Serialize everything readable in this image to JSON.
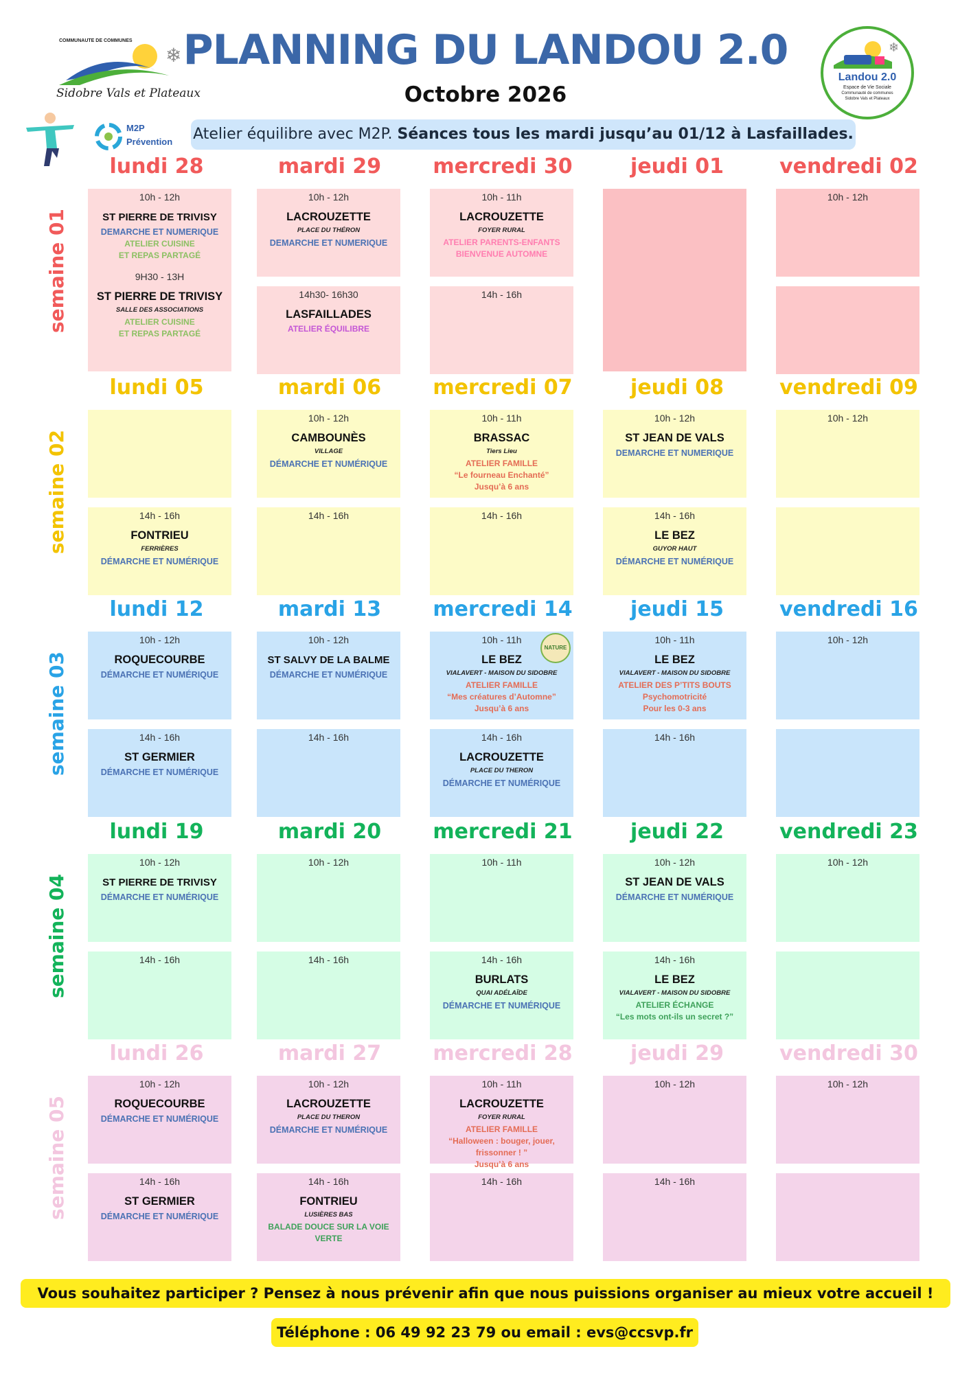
{
  "header": {
    "title": "PLANNING DU LANDOU 2.0",
    "subtitle": "Octobre 2026",
    "left_logo": {
      "top_text": "COMMUNAUTE DE COMMUNES",
      "bottom_text": "Sidobre Vals et Plateaux"
    },
    "right_logo": {
      "title": "Landou 2.0",
      "line1": "Espace de Vie Sociale",
      "line2": "Communauté de communes",
      "line3": "Sidobre Vals et Plateaux"
    },
    "m2p_logo": {
      "line1": "M2P",
      "line2": "Prévention"
    }
  },
  "banner": {
    "text": "Atelier équilibre avec M2P. ",
    "bold": "Séances tous les mardi jusqu’au 01/12 à Lasfaillades."
  },
  "colors": {
    "title": "#3b67a8",
    "s1": "#f15a5a",
    "s2": "#f3c300",
    "s3": "#29a3e6",
    "s4": "#13b35a",
    "s5": "#f3c6df"
  },
  "weeks": [
    {
      "label": "semaine 01",
      "color": "#f15a5a",
      "days": [
        "lundi 28",
        "mardi 29",
        "mercredi 30",
        "jeudi 01",
        "vendredi 02"
      ]
    },
    {
      "label": "semaine 02",
      "color": "#f3c300",
      "days": [
        "lundi 05",
        "mardi 06",
        "mercredi 07",
        "jeudi 08",
        "vendredi 09"
      ]
    },
    {
      "label": "semaine 03",
      "color": "#29a3e6",
      "days": [
        "lundi 12",
        "mardi 13",
        "mercredi 14",
        "jeudi 15",
        "vendredi 16"
      ]
    },
    {
      "label": "semaine 04",
      "color": "#13b35a",
      "days": [
        "lundi 19",
        "mardi 20",
        "mercredi 21",
        "jeudi 22",
        "vendredi 23"
      ]
    },
    {
      "label": "semaine 05",
      "color": "#f3c6df",
      "days": [
        "lundi 26",
        "mardi 27",
        "mercredi 28",
        "jeudi 29",
        "vendredi 30"
      ]
    }
  ],
  "cells": {
    "w1": {
      "lun": {
        "t": "10h - 12h",
        "p": "ST PIERRE DE TRIVISY",
        "d": "DEMARCHE ET NUMERIQUE",
        "t2": "9H30 - 13H",
        "p2": "ST PIERRE DE TRIVISY",
        "s2": "SALLE DES ASSOCIATIONS",
        "a2": "ATELIER CUISINE",
        "a3": "ET REPAS PARTAGÉ"
      },
      "mar_am": {
        "t": "10h - 12h",
        "p": "LACROUZETTE",
        "s": "PLACE DU THÉRON",
        "d": "DEMARCHE ET NUMERIQUE"
      },
      "mar_pm": {
        "t": "14h30- 16h30",
        "p": "LASFAILLADES",
        "a": "ATELIER ÉQUILIBRE"
      },
      "mer_am": {
        "t": "10h - 11h",
        "p": "LACROUZETTE",
        "s": "FOYER RURAL",
        "a": "ATELIER PARENTS-ENFANTS",
        "a2": "BIENVENUE AUTOMNE"
      },
      "mer_pm": {
        "t": "14h - 16h"
      },
      "ven_am": {
        "t": "10h - 12h"
      }
    },
    "w2": {
      "mar_am": {
        "t": "10h - 12h",
        "p": "CAMBOUNÈS",
        "s": "VILLAGE",
        "d": "DÉMARCHE ET NUMÉRIQUE"
      },
      "mer_am": {
        "t": "10h - 11h",
        "p": "BRASSAC",
        "s": "Tiers Lieu",
        "a": "ATELIER FAMILLE",
        "a2": "“Le fourneau Enchanté”",
        "a3": "Jusqu’à 6 ans"
      },
      "jeu_am": {
        "t": "10h - 12h",
        "p": "ST JEAN DE VALS",
        "d": "DEMARCHE ET NUMERIQUE"
      },
      "ven_am": {
        "t": "10h - 12h"
      },
      "lun_pm": {
        "t": "14h - 16h",
        "p": "FONTRIEU",
        "s": "FERRIÈRES",
        "d": "DÉMARCHE ET NUMÉRIQUE"
      },
      "mar_pm": {
        "t": "14h - 16h"
      },
      "mer_pm": {
        "t": "14h - 16h"
      },
      "jeu_pm": {
        "t": "14h - 16h",
        "p": "LE BEZ",
        "s": "GUYOR HAUT",
        "d": "DÉMARCHE ET NUMÉRIQUE"
      }
    },
    "w3": {
      "lun_am": {
        "t": "10h - 12h",
        "p": "ROQUECOURBE",
        "d": "DÉMARCHE ET NUMÉRIQUE"
      },
      "mar_am": {
        "t": "10h - 12h",
        "p": "ST SALVY DE LA BALME",
        "d": "DÉMARCHE ET NUMÉRIQUE"
      },
      "mer_am": {
        "t": "10h - 11h",
        "p": "LE BEZ",
        "s": "VIALAVERT - MAISON DU SIDOBRE",
        "a": "ATELIER FAMILLE",
        "a2": "“Mes créatures d’Automne”",
        "a3": "Jusqu’à 6 ans",
        "badge": "NATURE"
      },
      "jeu_am": {
        "t": "10h - 11h",
        "p": "LE BEZ",
        "s": "VIALAVERT - MAISON DU SIDOBRE",
        "a": "ATELIER DES P’TITS BOUTS",
        "a2": "Psychomotricité",
        "a3": "Pour les 0-3 ans"
      },
      "ven_am": {
        "t": "10h - 12h"
      },
      "lun_pm": {
        "t": "14h - 16h",
        "p": "ST GERMIER",
        "d": "DÉMARCHE ET NUMÉRIQUE"
      },
      "mar_pm": {
        "t": "14h - 16h"
      },
      "mer_pm": {
        "t": "14h - 16h",
        "p": "LACROUZETTE",
        "s": "PLACE DU THERON",
        "d": "DÉMARCHE ET NUMÉRIQUE"
      },
      "jeu_pm": {
        "t": "14h - 16h"
      }
    },
    "w4": {
      "lun_am": {
        "t": "10h - 12h",
        "p": "ST PIERRE DE TRIVISY",
        "d": "DÉMARCHE ET NUMÉRIQUE"
      },
      "mar_am": {
        "t": "10h - 12h"
      },
      "mer_am": {
        "t": "10h - 11h"
      },
      "jeu_am": {
        "t": "10h - 12h",
        "p": "ST JEAN DE VALS",
        "d": "DÉMARCHE ET NUMÉRIQUE"
      },
      "ven_am": {
        "t": "10h - 12h"
      },
      "lun_pm": {
        "t": "14h - 16h"
      },
      "mar_pm": {
        "t": "14h - 16h"
      },
      "mer_pm": {
        "t": "14h - 16h",
        "p": "BURLATS",
        "s": "QUAI ADÉLAÏDE",
        "d": "DÉMARCHE ET NUMÉRIQUE"
      },
      "jeu_pm": {
        "t": "14h - 16h",
        "p": "LE BEZ",
        "s": "VIALAVERT - MAISON DU SIDOBRE",
        "a": "ATELIER ÉCHANGE",
        "a2": "“Les mots ont-ils un secret ?”"
      }
    },
    "w5": {
      "lun_am": {
        "t": "10h - 12h",
        "p": "ROQUECOURBE",
        "d": "DÉMARCHE ET NUMÉRIQUE"
      },
      "mar_am": {
        "t": "10h - 12h",
        "p": "LACROUZETTE",
        "s": "PLACE DU THERON",
        "d": "DÉMARCHE ET NUMÉRIQUE"
      },
      "mer_am": {
        "t": "10h - 11h",
        "p": "LACROUZETTE",
        "s": "FOYER RURAL",
        "a": "ATELIER FAMILLE",
        "a2": "“Halloween : bouger, jouer, frissonner ! ”",
        "a3": "Jusqu’à 6 ans"
      },
      "jeu_am": {
        "t": "10h - 12h"
      },
      "ven_am": {
        "t": "10h - 12h"
      },
      "lun_pm": {
        "t": "14h - 16h",
        "p": "ST GERMIER",
        "d": "DÉMARCHE ET NUMÉRIQUE"
      },
      "mar_pm": {
        "t": "14h - 16h",
        "p": "FONTRIEU",
        "s": "LUSIÈRES BAS",
        "a": "BALADE DOUCE SUR LA VOIE",
        "a2": "VERTE"
      },
      "mer_pm": {
        "t": "14h - 16h"
      },
      "jeu_pm": {
        "t": "14h - 16h"
      }
    }
  },
  "footer": {
    "line1": "Vous souhaitez participer ? Pensez à nous prévenir afin que nous puissions organiser au mieux votre accueil !",
    "line2": "Téléphone : 06 49 92 23 79 ou email : evs@ccsvp.fr"
  }
}
